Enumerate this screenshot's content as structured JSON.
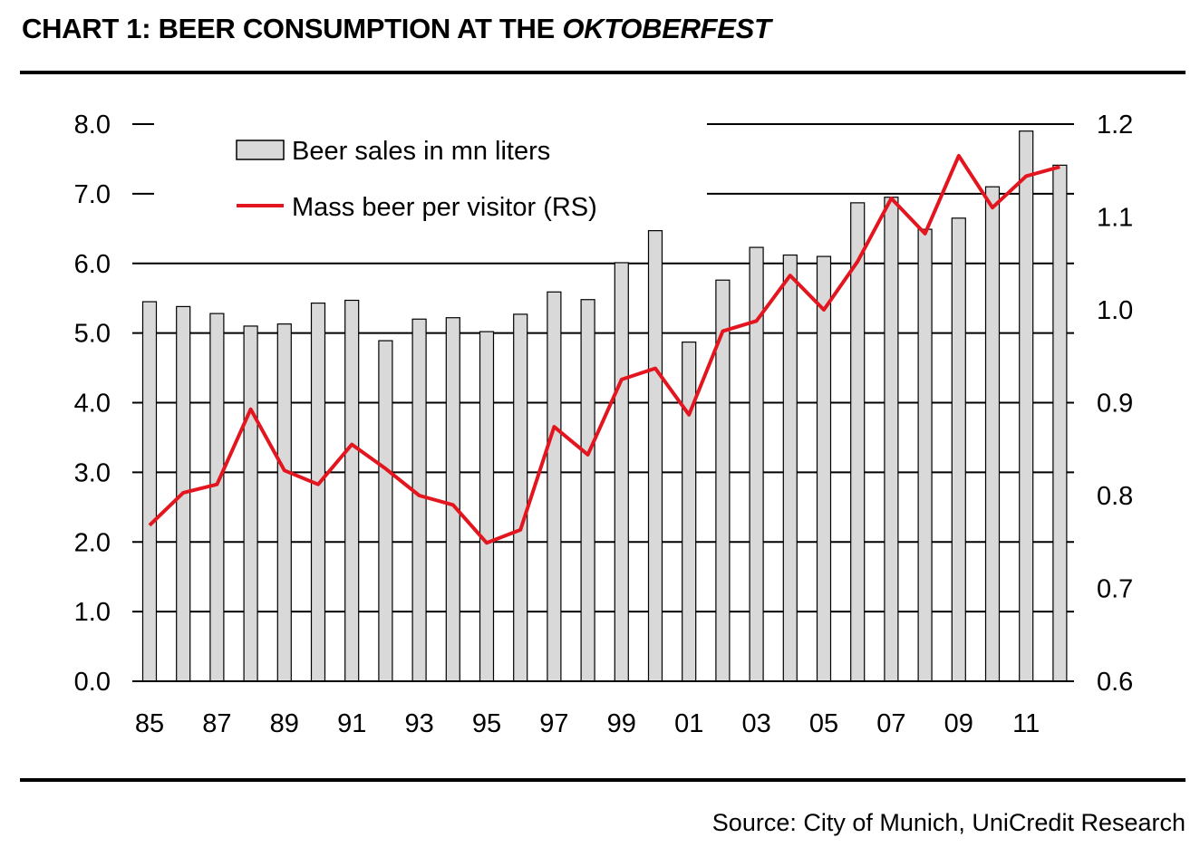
{
  "header": {
    "title_main": "CHART 1: BEER CONSUMPTION AT THE ",
    "title_em": "OKTOBERFEST"
  },
  "footer": {
    "source": "Source: City of Munich, UniCredit Research"
  },
  "colors": {
    "bar_fill": "#d9d9d9",
    "bar_stroke": "#000000",
    "line": "#e3161f",
    "grid": "#000000"
  },
  "chart_data": {
    "type": "bar+line",
    "years": [
      "85",
      "86",
      "87",
      "88",
      "89",
      "90",
      "91",
      "92",
      "93",
      "94",
      "95",
      "96",
      "97",
      "98",
      "99",
      "00",
      "01",
      "02",
      "03",
      "04",
      "05",
      "06",
      "07",
      "08",
      "09",
      "10",
      "11",
      "12"
    ],
    "x_tick_labels": [
      "85",
      "87",
      "89",
      "91",
      "93",
      "95",
      "97",
      "99",
      "01",
      "03",
      "05",
      "07",
      "09",
      "11"
    ],
    "left_axis": {
      "ylim": [
        0,
        8
      ],
      "ticks": [
        "0.0",
        "1.0",
        "2.0",
        "3.0",
        "4.0",
        "5.0",
        "6.0",
        "7.0",
        "8.0"
      ]
    },
    "right_axis": {
      "ylim": [
        0.6,
        1.2
      ],
      "ticks": [
        "0.6",
        "0.7",
        "0.8",
        "0.9",
        "1.0",
        "1.1",
        "1.2"
      ]
    },
    "series": [
      {
        "name": "Beer sales in mn liters",
        "type": "bar",
        "axis": "left",
        "values": [
          5.45,
          5.38,
          5.28,
          5.1,
          5.13,
          5.43,
          5.47,
          4.89,
          5.2,
          5.22,
          5.02,
          5.27,
          5.59,
          5.48,
          6.01,
          6.47,
          4.87,
          5.76,
          6.23,
          6.12,
          6.1,
          6.87,
          6.95,
          6.49,
          6.65,
          7.1,
          7.9,
          7.41
        ]
      },
      {
        "name": "Mass beer per visitor (RS)",
        "type": "line",
        "axis": "right",
        "values": [
          0.768,
          0.803,
          0.812,
          0.893,
          0.827,
          0.812,
          0.855,
          0.829,
          0.8,
          0.79,
          0.749,
          0.763,
          0.874,
          0.844,
          0.925,
          0.937,
          0.887,
          0.977,
          0.988,
          1.037,
          1.0,
          1.052,
          1.12,
          1.082,
          1.166,
          1.11,
          1.144,
          1.154
        ]
      }
    ],
    "legend_position": "top-left"
  }
}
